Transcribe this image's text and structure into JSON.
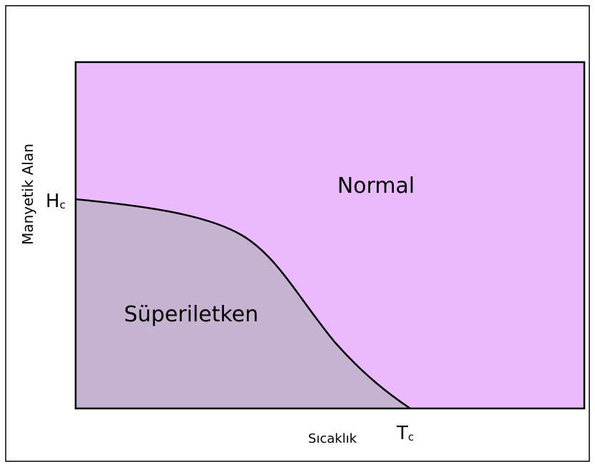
{
  "diagram": {
    "regions": {
      "normal": "Normal",
      "superconducting": "Süperiletken"
    },
    "axes": {
      "y_label": "Manyetik Alan",
      "x_label": "Sıcaklık"
    },
    "markers": {
      "y_marker": {
        "main": "H",
        "sub": "c"
      },
      "x_marker": {
        "main": "T",
        "sub": "c"
      }
    }
  }
}
